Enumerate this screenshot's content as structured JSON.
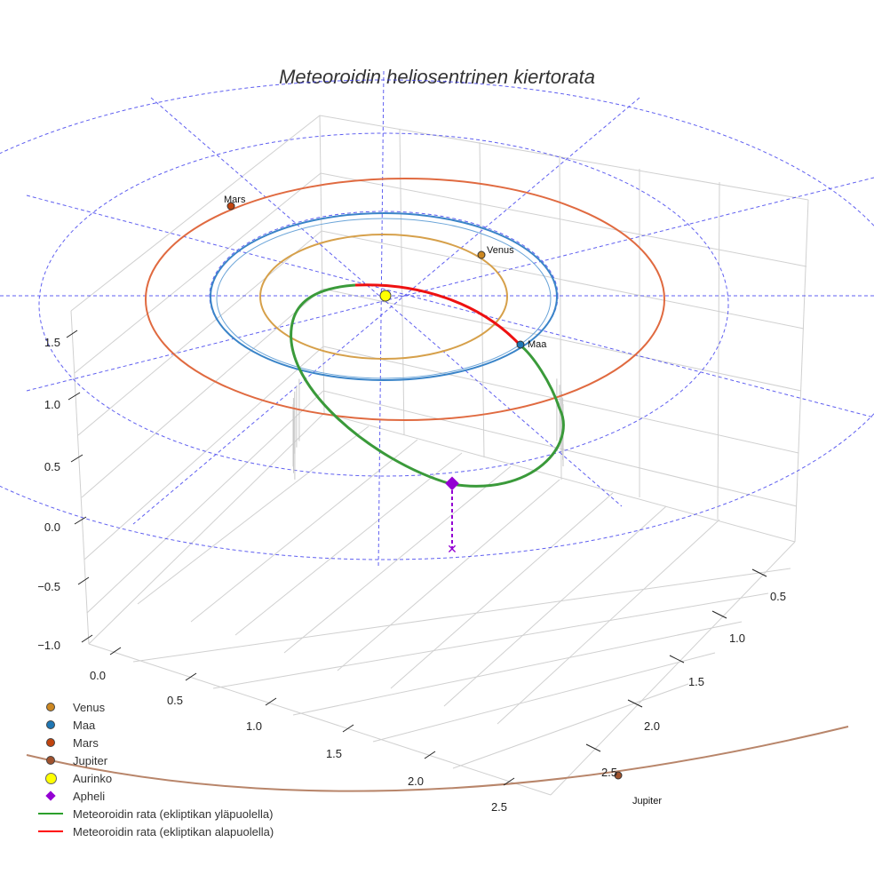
{
  "title": "Meteoroidin heliosentrinen kiertorata",
  "chart_data": {
    "type": "scatter3d",
    "title": "Meteoroidin heliosentrinen kiertorata",
    "z_ticks": [
      "1.5",
      "1.0",
      "0.5",
      "0.0",
      "−0.5",
      "−1.0"
    ],
    "x_ticks": [
      "0.0",
      "0.5",
      "1.0",
      "1.5",
      "2.0",
      "2.5"
    ],
    "y_ticks": [
      "0.5",
      "1.0",
      "1.5",
      "2.0",
      "2.5"
    ],
    "planet_orbits_au": {
      "Venus": 0.72,
      "Maa": 1.0,
      "Mars": 1.52,
      "Jupiter": 5.2
    },
    "meteoroid": {
      "aphelion_au": 2.05,
      "perihelion_au": 0.2,
      "above_color": "#2ca02c",
      "below_color": "#ff0000"
    },
    "ecliptic_grid": {
      "rings_au": [
        1.0,
        2.0,
        3.0
      ],
      "color": "#4444ee"
    }
  },
  "planets": {
    "venus": {
      "label": "Venus",
      "color": "#cc8822"
    },
    "maa": {
      "label": "Maa",
      "color": "#1f77b4"
    },
    "mars": {
      "label": "Mars",
      "color": "#c1440e"
    },
    "jupiter": {
      "label": "Jupiter",
      "color": "#a0522d"
    }
  },
  "legend": [
    {
      "label": "Venus",
      "color": "#cc8822"
    },
    {
      "label": "Maa",
      "color": "#1f77b4"
    },
    {
      "label": "Mars",
      "color": "#c1440e"
    },
    {
      "label": "Jupiter",
      "color": "#a0522d"
    },
    {
      "label": "Aurinko",
      "color": "#ffff00"
    },
    {
      "label": "Apheli",
      "color": "#9400d3"
    },
    {
      "label": "Meteoroidin rata (ekliptikan yläpuolella)",
      "color": "#2ca02c"
    },
    {
      "label": "Meteoroidin rata (ekliptikan alapuolella)",
      "color": "#ff0000"
    }
  ]
}
